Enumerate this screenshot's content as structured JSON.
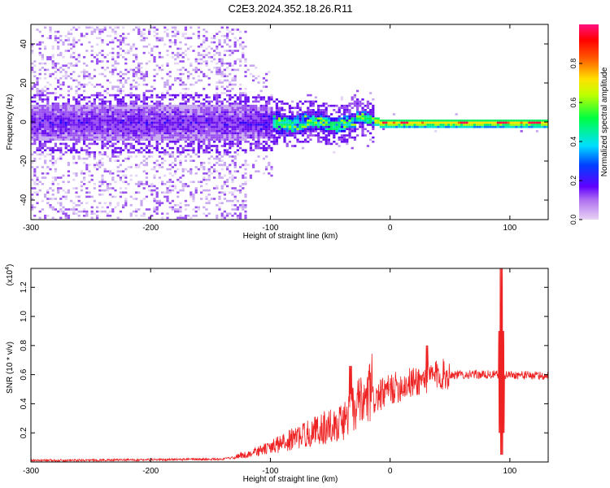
{
  "title": "C2E3.2024.352.18.26.R11",
  "chart_data": [
    {
      "type": "heatmap",
      "xlabel": "Height of straight line (km)",
      "ylabel": "Frequency (Hz)",
      "xlim": [
        -300,
        132
      ],
      "ylim": [
        -50,
        50
      ],
      "x_ticks": [
        -300,
        -200,
        -100,
        0,
        100
      ],
      "y_ticks": [
        -40,
        -20,
        0,
        20,
        40
      ],
      "colorbar": {
        "label": "Normalized spectral amplitude",
        "range": [
          0,
          1
        ],
        "ticks": [
          "0.0",
          "0.2",
          "0.4",
          "0.6",
          "0.8"
        ],
        "colors": [
          "#e0c8f0",
          "#8c00ff",
          "#0000ff",
          "#00c8ff",
          "#00ff00",
          "#ffff00",
          "#ff8000",
          "#ff0000",
          "#ff0080"
        ]
      },
      "colors": {
        "faint": "#d2b8f2",
        "mid": "#8a2be2",
        "dense": "#5a00e0",
        "bright": "#00e070",
        "peak": "#ff2050"
      }
    },
    {
      "type": "line",
      "xlabel": "Height of straight line (km)",
      "ylabel": "SNR (10 * v/v)",
      "multiplier": "(x10",
      "multiplier_exp": "4",
      "xlim": [
        -300,
        132
      ],
      "ylim": [
        0,
        1.33
      ],
      "x_ticks": [
        -300,
        -200,
        -100,
        0,
        100
      ],
      "y_ticks": [
        "0.2",
        "0.4",
        "0.6",
        "0.8",
        "1.0",
        "1.2"
      ],
      "series": [
        {
          "color": "#ee2222",
          "envelope_x": [
            -300,
            -200,
            -140,
            -120,
            -100,
            -80,
            -60,
            -40,
            -30,
            -20,
            -15,
            0,
            20,
            40,
            50,
            60,
            80,
            90,
            100,
            132
          ],
          "envelope_y": [
            0.01,
            0.015,
            0.02,
            0.04,
            0.08,
            0.13,
            0.18,
            0.22,
            0.3,
            0.33,
            0.42,
            0.5,
            0.55,
            0.6,
            0.6,
            0.6,
            0.6,
            0.6,
            0.6,
            0.59
          ],
          "spike_x": 93,
          "spike_y": 1.33
        }
      ]
    }
  ]
}
